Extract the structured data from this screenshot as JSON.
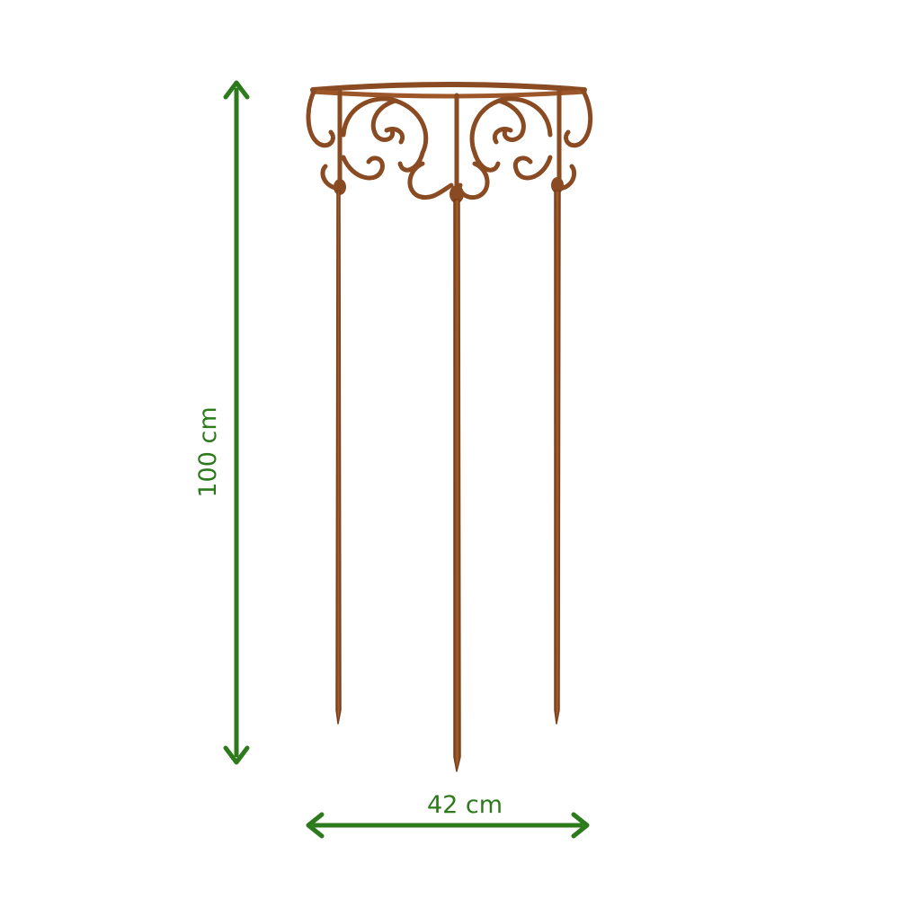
{
  "dimensions": {
    "height_label": "100 cm",
    "width_label": "42 cm"
  },
  "colors": {
    "measure_green": "#2d7a1c",
    "rust": "#8a4a22",
    "rust_light": "#b06b35",
    "background": "#ffffff"
  },
  "product": {
    "legs": 3,
    "scroll_panels": 2
  }
}
